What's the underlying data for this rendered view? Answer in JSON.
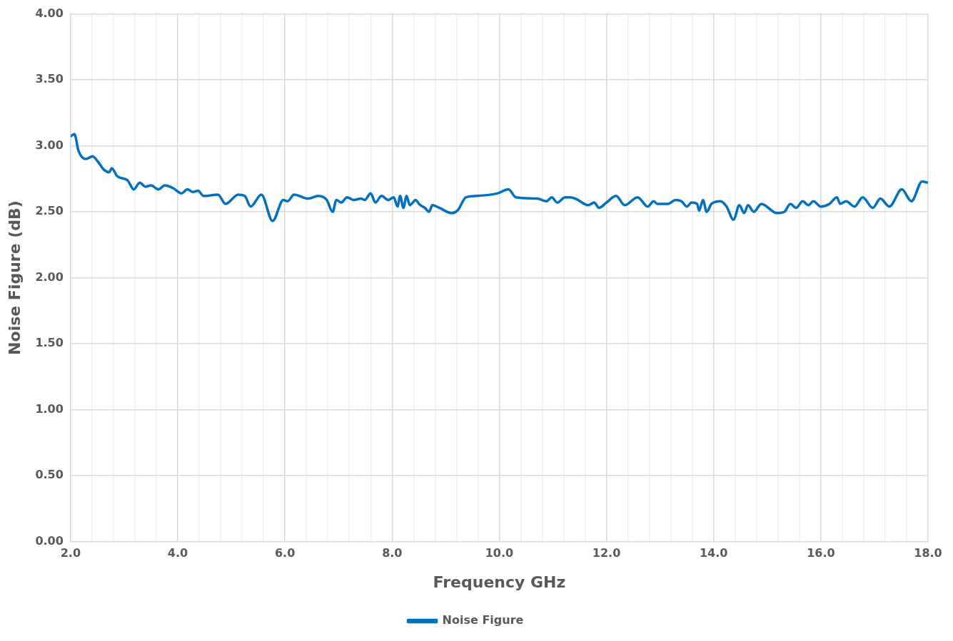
{
  "chart_data": {
    "type": "line",
    "xlabel": "Frequency GHz",
    "ylabel": "Noise Figure (dB)",
    "xlim": [
      2,
      18
    ],
    "ylim": [
      0,
      4
    ],
    "xticks": [
      {
        "value": 2,
        "label": "2.0"
      },
      {
        "value": 2.4,
        "label": null
      },
      {
        "value": 2.8,
        "label": null
      },
      {
        "value": 3.2,
        "label": null
      },
      {
        "value": 3.6,
        "label": null
      },
      {
        "value": 4,
        "label": "4.0"
      },
      {
        "value": 4.4,
        "label": null
      },
      {
        "value": 4.8,
        "label": null
      },
      {
        "value": 5.2,
        "label": null
      },
      {
        "value": 5.6,
        "label": null
      },
      {
        "value": 6,
        "label": "6.0"
      },
      {
        "value": 6.4,
        "label": null
      },
      {
        "value": 6.8,
        "label": null
      },
      {
        "value": 7.2,
        "label": null
      },
      {
        "value": 7.6,
        "label": null
      },
      {
        "value": 8,
        "label": "8.0"
      },
      {
        "value": 8.4,
        "label": null
      },
      {
        "value": 8.8,
        "label": null
      },
      {
        "value": 9.2,
        "label": null
      },
      {
        "value": 9.6,
        "label": null
      },
      {
        "value": 10,
        "label": "10.0"
      },
      {
        "value": 10.4,
        "label": null
      },
      {
        "value": 10.8,
        "label": null
      },
      {
        "value": 11.2,
        "label": null
      },
      {
        "value": 11.6,
        "label": null
      },
      {
        "value": 12,
        "label": "12.0"
      },
      {
        "value": 12.4,
        "label": null
      },
      {
        "value": 12.8,
        "label": null
      },
      {
        "value": 13.2,
        "label": null
      },
      {
        "value": 13.6,
        "label": null
      },
      {
        "value": 14,
        "label": "14.0"
      },
      {
        "value": 14.4,
        "label": null
      },
      {
        "value": 14.8,
        "label": null
      },
      {
        "value": 15.2,
        "label": null
      },
      {
        "value": 15.6,
        "label": null
      },
      {
        "value": 16,
        "label": "16.0"
      },
      {
        "value": 16.4,
        "label": null
      },
      {
        "value": 16.8,
        "label": null
      },
      {
        "value": 17.2,
        "label": null
      },
      {
        "value": 17.6,
        "label": null
      },
      {
        "value": 18,
        "label": "18.0"
      }
    ],
    "yticks": [
      {
        "value": 0,
        "label": "0.00"
      },
      {
        "value": 0.5,
        "label": "0.50"
      },
      {
        "value": 1,
        "label": "1.00"
      },
      {
        "value": 1.5,
        "label": "1.50"
      },
      {
        "value": 2,
        "label": "2.00"
      },
      {
        "value": 2.5,
        "label": "2.50"
      },
      {
        "value": 3,
        "label": "3.00"
      },
      {
        "value": 3.5,
        "label": "3.50"
      },
      {
        "value": 4,
        "label": "4.00"
      }
    ],
    "grid": true,
    "legend": "bottom",
    "marker": "none",
    "line_style": "solid",
    "series": [
      {
        "name": "Noise Figure",
        "color": "#0070c0",
        "x": [
          2.0,
          2.07,
          2.15,
          2.28,
          2.41,
          2.51,
          2.62,
          2.72,
          2.77,
          2.87,
          3.06,
          3.18,
          3.29,
          3.4,
          3.5,
          3.64,
          3.76,
          3.91,
          4.07,
          4.18,
          4.28,
          4.38,
          4.48,
          4.75,
          4.89,
          5.13,
          5.25,
          5.36,
          5.56,
          5.77,
          5.97,
          6.05,
          6.17,
          6.44,
          6.62,
          6.78,
          6.89,
          6.96,
          7.05,
          7.16,
          7.28,
          7.42,
          7.49,
          7.6,
          7.69,
          7.8,
          7.93,
          8.03,
          8.1,
          8.15,
          8.21,
          8.27,
          8.33,
          8.44,
          8.5,
          8.61,
          8.69,
          8.75,
          8.88,
          9.11,
          9.22,
          9.38,
          9.57,
          9.97,
          10.17,
          10.31,
          10.71,
          10.88,
          10.98,
          11.08,
          11.23,
          11.32,
          11.42,
          11.66,
          11.77,
          11.86,
          12.0,
          12.18,
          12.34,
          12.58,
          12.77,
          12.88,
          12.95,
          13.15,
          13.29,
          13.4,
          13.5,
          13.59,
          13.69,
          13.73,
          13.8,
          13.87,
          13.96,
          14.13,
          14.24,
          14.37,
          14.48,
          14.57,
          14.64,
          14.75,
          14.89,
          15.18,
          15.32,
          15.43,
          15.54,
          15.66,
          15.77,
          15.86,
          16.0,
          16.16,
          16.3,
          16.36,
          16.47,
          16.63,
          16.78,
          16.97,
          17.11,
          17.28,
          17.51,
          17.69,
          17.89,
          18.0
        ],
        "values": [
          3.07,
          3.09,
          2.96,
          2.9,
          2.92,
          2.88,
          2.82,
          2.8,
          2.83,
          2.77,
          2.74,
          2.67,
          2.72,
          2.69,
          2.7,
          2.67,
          2.7,
          2.68,
          2.64,
          2.67,
          2.65,
          2.66,
          2.62,
          2.63,
          2.56,
          2.63,
          2.62,
          2.54,
          2.63,
          2.43,
          2.59,
          2.58,
          2.63,
          2.6,
          2.62,
          2.59,
          2.5,
          2.59,
          2.57,
          2.61,
          2.59,
          2.6,
          2.59,
          2.64,
          2.57,
          2.62,
          2.59,
          2.61,
          2.54,
          2.62,
          2.53,
          2.62,
          2.55,
          2.59,
          2.56,
          2.53,
          2.5,
          2.55,
          2.53,
          2.49,
          2.51,
          2.61,
          2.62,
          2.64,
          2.67,
          2.61,
          2.6,
          2.58,
          2.61,
          2.57,
          2.61,
          2.61,
          2.6,
          2.55,
          2.57,
          2.53,
          2.57,
          2.62,
          2.55,
          2.61,
          2.54,
          2.58,
          2.56,
          2.56,
          2.59,
          2.58,
          2.54,
          2.57,
          2.56,
          2.51,
          2.59,
          2.5,
          2.56,
          2.58,
          2.54,
          2.44,
          2.55,
          2.49,
          2.55,
          2.5,
          2.56,
          2.49,
          2.5,
          2.56,
          2.53,
          2.58,
          2.55,
          2.58,
          2.54,
          2.56,
          2.61,
          2.56,
          2.58,
          2.54,
          2.61,
          2.53,
          2.6,
          2.54,
          2.67,
          2.58,
          2.73,
          2.72
        ]
      }
    ]
  }
}
